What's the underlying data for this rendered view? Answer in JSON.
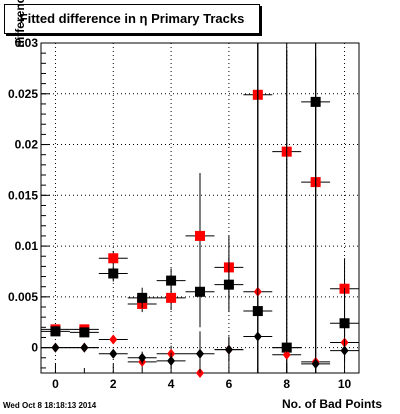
{
  "chart_data": {
    "type": "scatter",
    "title": "Fitted difference in  η Primary Tracks",
    "xlabel": "No. of Bad Points",
    "ylabel": "difference in",
    "xlim": [
      -0.5,
      10.5
    ],
    "ylim": [
      -0.0025,
      0.03
    ],
    "x_ticks": [
      0,
      2,
      4,
      6,
      8,
      10
    ],
    "y_ticks": [
      0,
      0.005,
      0.01,
      0.015,
      0.02,
      0.025,
      0.03
    ],
    "y_tick_labels": [
      "0",
      "0.005",
      "0.01",
      "0.015",
      "0.02",
      "0.025",
      "0.03"
    ],
    "grid": true,
    "series": [
      {
        "marker": "square",
        "color": "#ff0000",
        "points": [
          {
            "x": 0,
            "y": 0.0018,
            "yerr": 0.0003
          },
          {
            "x": 1,
            "y": 0.0018,
            "yerr": 0.0003
          },
          {
            "x": 2,
            "y": 0.0088,
            "yerr": 0.0007
          },
          {
            "x": 3,
            "y": 0.0043,
            "yerr": 0.0008
          },
          {
            "x": 4,
            "y": 0.0049,
            "yerr": 0.0012
          },
          {
            "x": 5,
            "y": 0.011,
            "yerr": 0.0062
          },
          {
            "x": 6,
            "y": 0.0079,
            "yerr": 0.0031
          },
          {
            "x": 7,
            "y": 0.0249,
            "yerr": 0.03
          },
          {
            "x": 8,
            "y": 0.0193,
            "yerr": 0.03
          },
          {
            "x": 9,
            "y": 0.0163,
            "yerr": 0.03
          },
          {
            "x": 10,
            "y": 0.0058,
            "yerr": 0.003
          }
        ]
      },
      {
        "marker": "square",
        "color": "#000000",
        "points": [
          {
            "x": 0,
            "y": 0.0016,
            "yerr": 0.0003
          },
          {
            "x": 1,
            "y": 0.0015,
            "yerr": 0.0003
          },
          {
            "x": 2,
            "y": 0.0073,
            "yerr": 0.0008
          },
          {
            "x": 3,
            "y": 0.0049,
            "yerr": 0.001
          },
          {
            "x": 4,
            "y": 0.0066,
            "yerr": 0.0012
          },
          {
            "x": 5,
            "y": 0.0055,
            "yerr": 0.0035
          },
          {
            "x": 6,
            "y": 0.0062,
            "yerr": 0.0027
          },
          {
            "x": 7,
            "y": 0.0036,
            "yerr": 0.03
          },
          {
            "x": 8,
            "y": 0.0,
            "yerr": 0.0
          },
          {
            "x": 9,
            "y": 0.0242,
            "yerr": 0.03
          },
          {
            "x": 10,
            "y": 0.0024,
            "yerr": 0.0035
          }
        ]
      },
      {
        "marker": "diamond",
        "color": "#ff0000",
        "points": [
          {
            "x": 0,
            "y": 0.0,
            "yerr": 0.0002
          },
          {
            "x": 1,
            "y": 0.0,
            "yerr": 0.0002
          },
          {
            "x": 2,
            "y": 0.0008,
            "yerr": 0.0004
          },
          {
            "x": 3,
            "y": -0.0014,
            "yerr": 0.0006
          },
          {
            "x": 4,
            "y": -0.0006,
            "yerr": 0.0008
          },
          {
            "x": 5,
            "y": -0.0025,
            "yerr": 0.001
          },
          {
            "x": 6,
            "y": -0.0002,
            "yerr": 0.0012
          },
          {
            "x": 7,
            "y": 0.0055,
            "yerr": 0.03
          },
          {
            "x": 8,
            "y": -0.0007,
            "yerr": 0.03
          },
          {
            "x": 9,
            "y": -0.0014,
            "yerr": 0.03
          },
          {
            "x": 10,
            "y": 0.0005,
            "yerr": 0.002
          }
        ]
      },
      {
        "marker": "diamond",
        "color": "#000000",
        "points": [
          {
            "x": 0,
            "y": 0.0,
            "yerr": 0.0002
          },
          {
            "x": 1,
            "y": 0.0,
            "yerr": 0.0002
          },
          {
            "x": 2,
            "y": -0.0006,
            "yerr": 0.0004
          },
          {
            "x": 3,
            "y": -0.001,
            "yerr": 0.0006
          },
          {
            "x": 4,
            "y": -0.0013,
            "yerr": 0.0008
          },
          {
            "x": 5,
            "y": -0.0006,
            "yerr": 0.0022
          },
          {
            "x": 6,
            "y": -0.0002,
            "yerr": 0.0013
          },
          {
            "x": 7,
            "y": 0.0011,
            "yerr": 0.03
          },
          {
            "x": 8,
            "y": 0.0,
            "yerr": 0.0
          },
          {
            "x": 9,
            "y": -0.0016,
            "yerr": 0.03
          },
          {
            "x": 10,
            "y": -0.0003,
            "yerr": 0.0012
          }
        ]
      }
    ]
  },
  "footer": {
    "timestamp": "Wed Oct  8 18:18:13 2014"
  }
}
